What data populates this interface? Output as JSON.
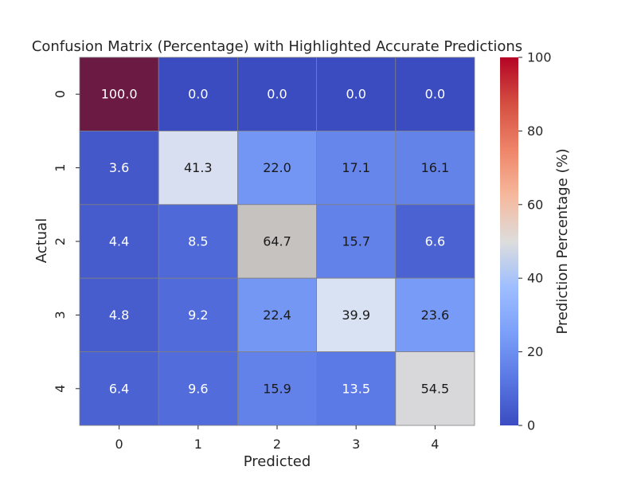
{
  "chart_data": {
    "type": "heatmap",
    "title": "Confusion Matrix (Percentage) with Highlighted Accurate Predictions",
    "xlabel": "Predicted",
    "ylabel": "Actual",
    "x_categories": [
      "0",
      "1",
      "2",
      "3",
      "4"
    ],
    "y_categories": [
      "0",
      "1",
      "2",
      "3",
      "4"
    ],
    "values": [
      [
        100.0,
        0.0,
        0.0,
        0.0,
        0.0
      ],
      [
        3.6,
        41.3,
        22.0,
        17.1,
        16.1
      ],
      [
        4.4,
        8.5,
        64.7,
        15.7,
        6.6
      ],
      [
        4.8,
        9.2,
        22.4,
        39.9,
        23.6
      ],
      [
        6.4,
        9.6,
        15.9,
        13.5,
        54.5
      ]
    ],
    "value_labels": [
      [
        "100.0",
        "0.0",
        "0.0",
        "0.0",
        "0.0"
      ],
      [
        "3.6",
        "41.3",
        "22.0",
        "17.1",
        "16.1"
      ],
      [
        "4.4",
        "8.5",
        "64.7",
        "15.7",
        "6.6"
      ],
      [
        "4.8",
        "9.2",
        "22.4",
        "39.9",
        "23.6"
      ],
      [
        "6.4",
        "9.6",
        "15.9",
        "13.5",
        "54.5"
      ]
    ],
    "colormap": "coolwarm",
    "colorbar": {
      "label": "Prediction Percentage (%)",
      "range": [
        0,
        100
      ],
      "ticks": [
        0,
        20,
        40,
        60,
        80,
        100
      ],
      "tick_labels": [
        "0",
        "20",
        "40",
        "60",
        "80",
        "100"
      ]
    },
    "diagonal_highlight": {
      "color_0": "#6b1a44",
      "color_1": "#d8dff0",
      "color_2": "#c6c2c0",
      "color_3": "#d8e2f2",
      "color_4": "#d8d8da"
    },
    "cell_border_color": "#808080",
    "dark_text_color": "#1a1a1a",
    "light_text_color": "#ffffff"
  }
}
